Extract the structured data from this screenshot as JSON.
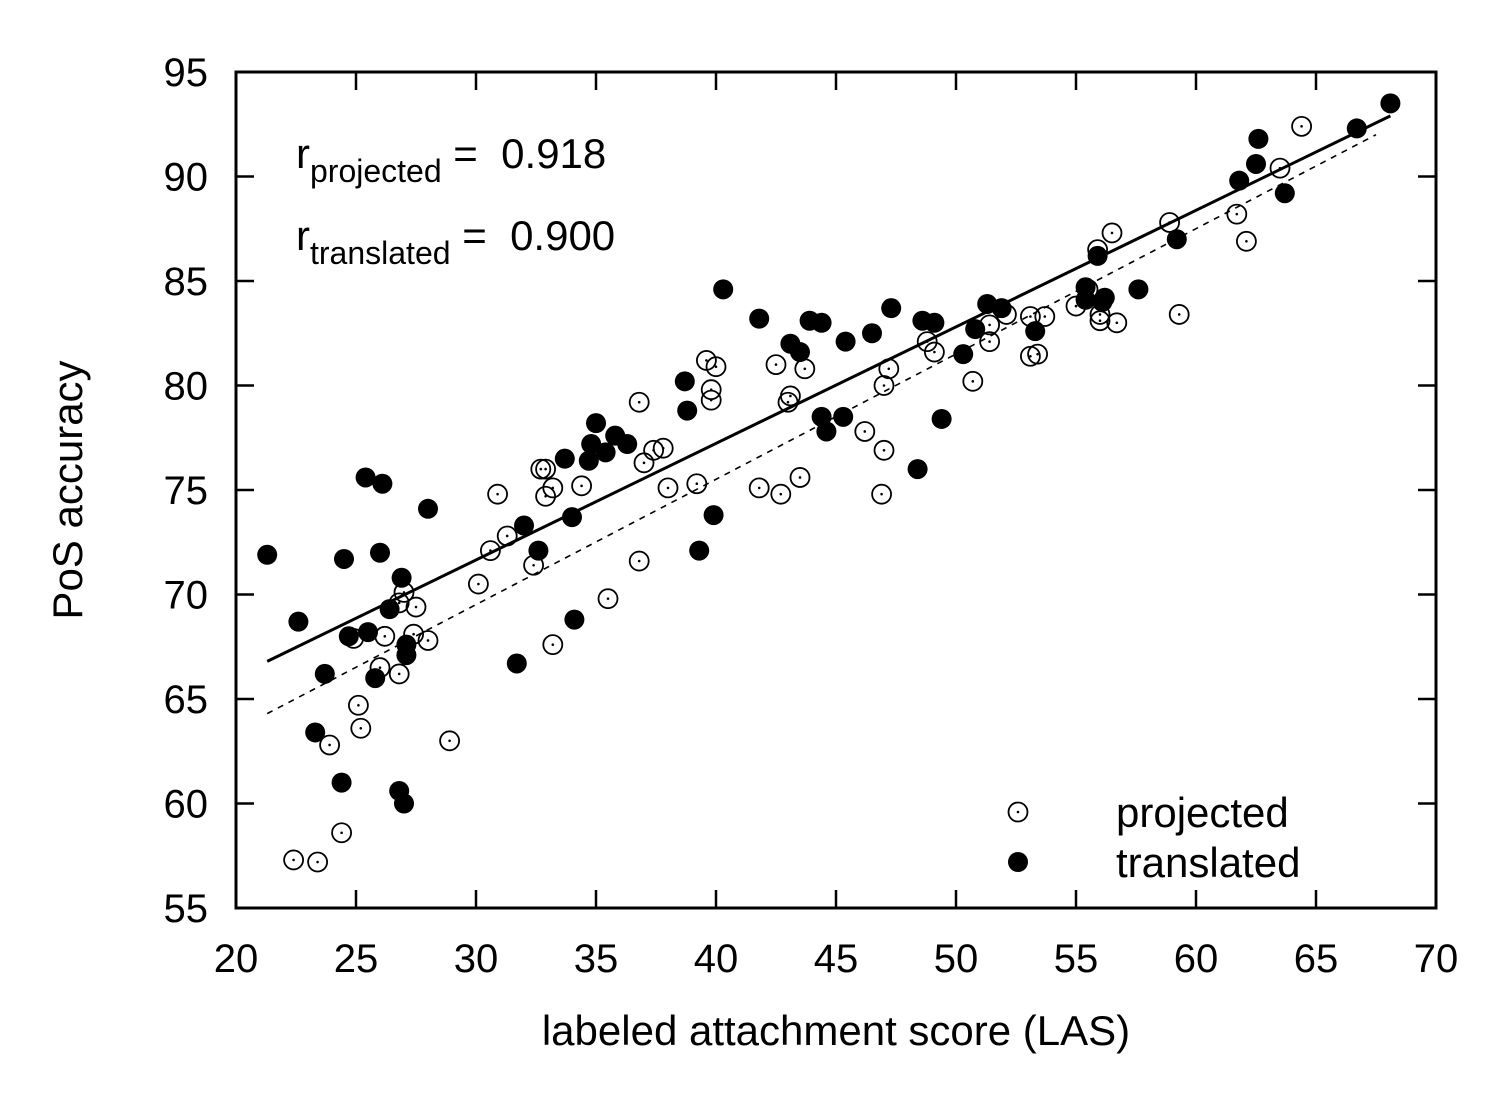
{
  "chart_data": {
    "type": "scatter",
    "xlabel": "labeled attachment score (LAS)",
    "ylabel": "PoS accuracy",
    "xlim": [
      20,
      70
    ],
    "ylim": [
      55,
      95
    ],
    "xticks": [
      "20",
      "25",
      "30",
      "35",
      "40",
      "45",
      "50",
      "55",
      "60",
      "65",
      "70"
    ],
    "yticks": [
      "55",
      "60",
      "65",
      "70",
      "75",
      "80",
      "85",
      "90",
      "95"
    ],
    "grid": false,
    "legend_placement": "bottom-right",
    "annotations": [
      {
        "prefix": "r",
        "subscript": "projected",
        "eq": " =  0.918"
      },
      {
        "prefix": "r",
        "subscript": "translated",
        "eq": " =  0.900"
      }
    ],
    "series": [
      {
        "name": "projected",
        "marker": "open-circle-dot",
        "points": [
          [
            22.4,
            57.3
          ],
          [
            23.4,
            57.2
          ],
          [
            24.4,
            58.6
          ],
          [
            23.9,
            62.8
          ],
          [
            25.1,
            64.7
          ],
          [
            25.2,
            63.6
          ],
          [
            26.0,
            66.5
          ],
          [
            26.8,
            66.2
          ],
          [
            24.9,
            67.9
          ],
          [
            26.2,
            68.0
          ],
          [
            27.4,
            68.1
          ],
          [
            28.0,
            67.8
          ],
          [
            26.8,
            69.6
          ],
          [
            27.0,
            70.1
          ],
          [
            27.5,
            69.4
          ],
          [
            28.9,
            63.0
          ],
          [
            30.1,
            70.5
          ],
          [
            30.6,
            72.1
          ],
          [
            30.9,
            74.8
          ],
          [
            31.3,
            72.8
          ],
          [
            32.4,
            71.4
          ],
          [
            32.7,
            76.0
          ],
          [
            32.9,
            76.0
          ],
          [
            32.9,
            74.7
          ],
          [
            33.2,
            75.1
          ],
          [
            33.2,
            67.6
          ],
          [
            34.4,
            75.2
          ],
          [
            35.5,
            69.8
          ],
          [
            36.8,
            79.2
          ],
          [
            37.0,
            76.3
          ],
          [
            37.4,
            76.9
          ],
          [
            37.8,
            77.0
          ],
          [
            38.0,
            75.1
          ],
          [
            36.8,
            71.6
          ],
          [
            39.2,
            75.3
          ],
          [
            39.6,
            81.2
          ],
          [
            39.8,
            79.8
          ],
          [
            39.8,
            79.3
          ],
          [
            40.0,
            80.9
          ],
          [
            41.8,
            75.1
          ],
          [
            42.5,
            81.0
          ],
          [
            42.7,
            74.8
          ],
          [
            43.1,
            79.5
          ],
          [
            43.0,
            79.2
          ],
          [
            43.5,
            75.6
          ],
          [
            43.7,
            80.8
          ],
          [
            46.2,
            77.8
          ],
          [
            46.9,
            74.8
          ],
          [
            47.0,
            76.9
          ],
          [
            47.0,
            80.0
          ],
          [
            47.2,
            80.8
          ],
          [
            48.8,
            82.1
          ],
          [
            49.1,
            81.6
          ],
          [
            50.7,
            80.2
          ],
          [
            51.4,
            82.1
          ],
          [
            51.4,
            82.9
          ],
          [
            52.1,
            83.4
          ],
          [
            53.1,
            81.4
          ],
          [
            53.4,
            81.5
          ],
          [
            53.7,
            83.3
          ],
          [
            55.0,
            83.8
          ],
          [
            55.5,
            84.6
          ],
          [
            55.9,
            86.5
          ],
          [
            56.0,
            83.1
          ],
          [
            56.0,
            83.4
          ],
          [
            56.5,
            87.3
          ],
          [
            56.7,
            83.0
          ],
          [
            58.9,
            87.8
          ],
          [
            59.3,
            83.4
          ],
          [
            61.7,
            88.2
          ],
          [
            62.1,
            86.9
          ],
          [
            63.5,
            90.4
          ],
          [
            64.4,
            92.4
          ],
          [
            53.1,
            83.3
          ]
        ]
      },
      {
        "name": "translated",
        "marker": "filled-circle",
        "points": [
          [
            21.3,
            71.9
          ],
          [
            22.6,
            68.7
          ],
          [
            23.3,
            63.4
          ],
          [
            23.7,
            66.2
          ],
          [
            24.4,
            61.0
          ],
          [
            24.5,
            71.7
          ],
          [
            24.7,
            68.0
          ],
          [
            25.4,
            75.6
          ],
          [
            25.5,
            68.2
          ],
          [
            25.8,
            66.0
          ],
          [
            26.0,
            72.0
          ],
          [
            26.1,
            75.3
          ],
          [
            26.4,
            69.3
          ],
          [
            26.9,
            70.8
          ],
          [
            26.8,
            60.6
          ],
          [
            27.0,
            60.0
          ],
          [
            27.1,
            67.6
          ],
          [
            27.1,
            67.1
          ],
          [
            28.0,
            74.1
          ],
          [
            31.7,
            66.7
          ],
          [
            32.0,
            73.3
          ],
          [
            32.6,
            72.1
          ],
          [
            33.7,
            76.5
          ],
          [
            34.0,
            73.7
          ],
          [
            34.1,
            68.8
          ],
          [
            34.7,
            76.4
          ],
          [
            34.8,
            77.2
          ],
          [
            35.0,
            78.2
          ],
          [
            35.4,
            76.8
          ],
          [
            35.8,
            77.6
          ],
          [
            36.3,
            77.2
          ],
          [
            38.7,
            80.2
          ],
          [
            38.8,
            78.8
          ],
          [
            39.3,
            72.1
          ],
          [
            39.9,
            73.8
          ],
          [
            40.3,
            84.6
          ],
          [
            41.8,
            83.2
          ],
          [
            43.1,
            82.0
          ],
          [
            43.5,
            81.6
          ],
          [
            43.9,
            83.1
          ],
          [
            44.4,
            83.0
          ],
          [
            44.4,
            78.5
          ],
          [
            44.6,
            77.8
          ],
          [
            45.3,
            78.5
          ],
          [
            45.4,
            82.1
          ],
          [
            46.5,
            82.5
          ],
          [
            47.3,
            83.7
          ],
          [
            48.4,
            76.0
          ],
          [
            48.6,
            83.1
          ],
          [
            49.1,
            83.0
          ],
          [
            49.4,
            78.4
          ],
          [
            50.3,
            81.5
          ],
          [
            50.8,
            82.7
          ],
          [
            51.3,
            83.9
          ],
          [
            51.9,
            83.7
          ],
          [
            53.3,
            82.6
          ],
          [
            55.4,
            84.7
          ],
          [
            55.4,
            84.1
          ],
          [
            55.9,
            86.2
          ],
          [
            56.1,
            84.0
          ],
          [
            56.2,
            84.2
          ],
          [
            57.6,
            84.6
          ],
          [
            59.2,
            87.0
          ],
          [
            61.8,
            89.8
          ],
          [
            62.5,
            90.6
          ],
          [
            62.6,
            91.8
          ],
          [
            63.7,
            89.2
          ],
          [
            66.7,
            92.3
          ],
          [
            68.1,
            93.5
          ]
        ]
      }
    ],
    "fit_lines": [
      {
        "series": "translated",
        "style": "solid",
        "x": [
          21.3,
          68.1
        ],
        "y": [
          66.8,
          92.9
        ]
      },
      {
        "series": "projected",
        "style": "dashed",
        "x": [
          21.3,
          67.5
        ],
        "y": [
          64.3,
          92.0
        ]
      }
    ]
  }
}
